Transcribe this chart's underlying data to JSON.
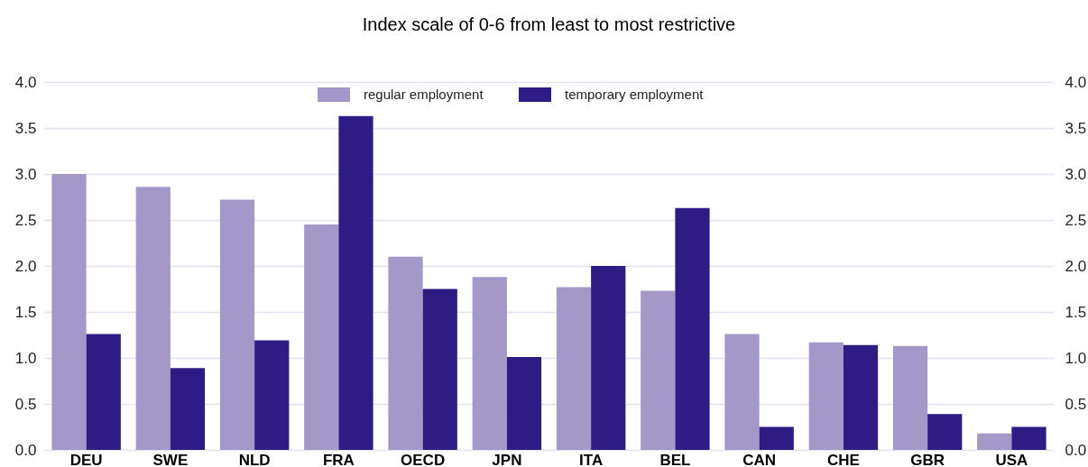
{
  "chart_data": {
    "type": "bar",
    "title": "Index scale of 0-6 from least to most restrictive",
    "categories": [
      "DEU",
      "SWE",
      "NLD",
      "FRA",
      "OECD",
      "JPN",
      "ITA",
      "BEL",
      "CAN",
      "CHE",
      "GBR",
      "USA"
    ],
    "series": [
      {
        "name": "regular employment",
        "color": "#a398c8",
        "values": [
          3.0,
          2.86,
          2.72,
          2.45,
          2.1,
          1.88,
          1.77,
          1.73,
          1.26,
          1.17,
          1.13,
          0.18
        ]
      },
      {
        "name": "temporary employment",
        "color": "#2e1c84",
        "values": [
          1.26,
          0.89,
          1.19,
          3.63,
          1.75,
          1.01,
          2.0,
          2.63,
          0.25,
          1.14,
          0.39,
          0.25
        ]
      }
    ],
    "ylim": [
      0,
      4
    ],
    "yticks": [
      {
        "value": 0,
        "label": "0.0"
      },
      0.5,
      {
        "value": 1,
        "label": "1.0"
      },
      1.5,
      {
        "value": 2,
        "label": "2.0"
      },
      2.5,
      {
        "value": 3,
        "label": "3.0"
      },
      3.5,
      {
        "value": 4,
        "label": "4.0"
      }
    ],
    "y2lim": [
      0,
      4
    ],
    "y2ticks": [
      {
        "value": 0,
        "label": "0.0"
      },
      0.5,
      {
        "value": 1,
        "label": "1.0"
      },
      1.5,
      {
        "value": 2,
        "label": "2.0"
      },
      2.5,
      {
        "value": 3,
        "label": "3.0"
      },
      3.5,
      {
        "value": 4,
        "label": "4.0"
      }
    ],
    "grid": "y",
    "legend": "top"
  }
}
